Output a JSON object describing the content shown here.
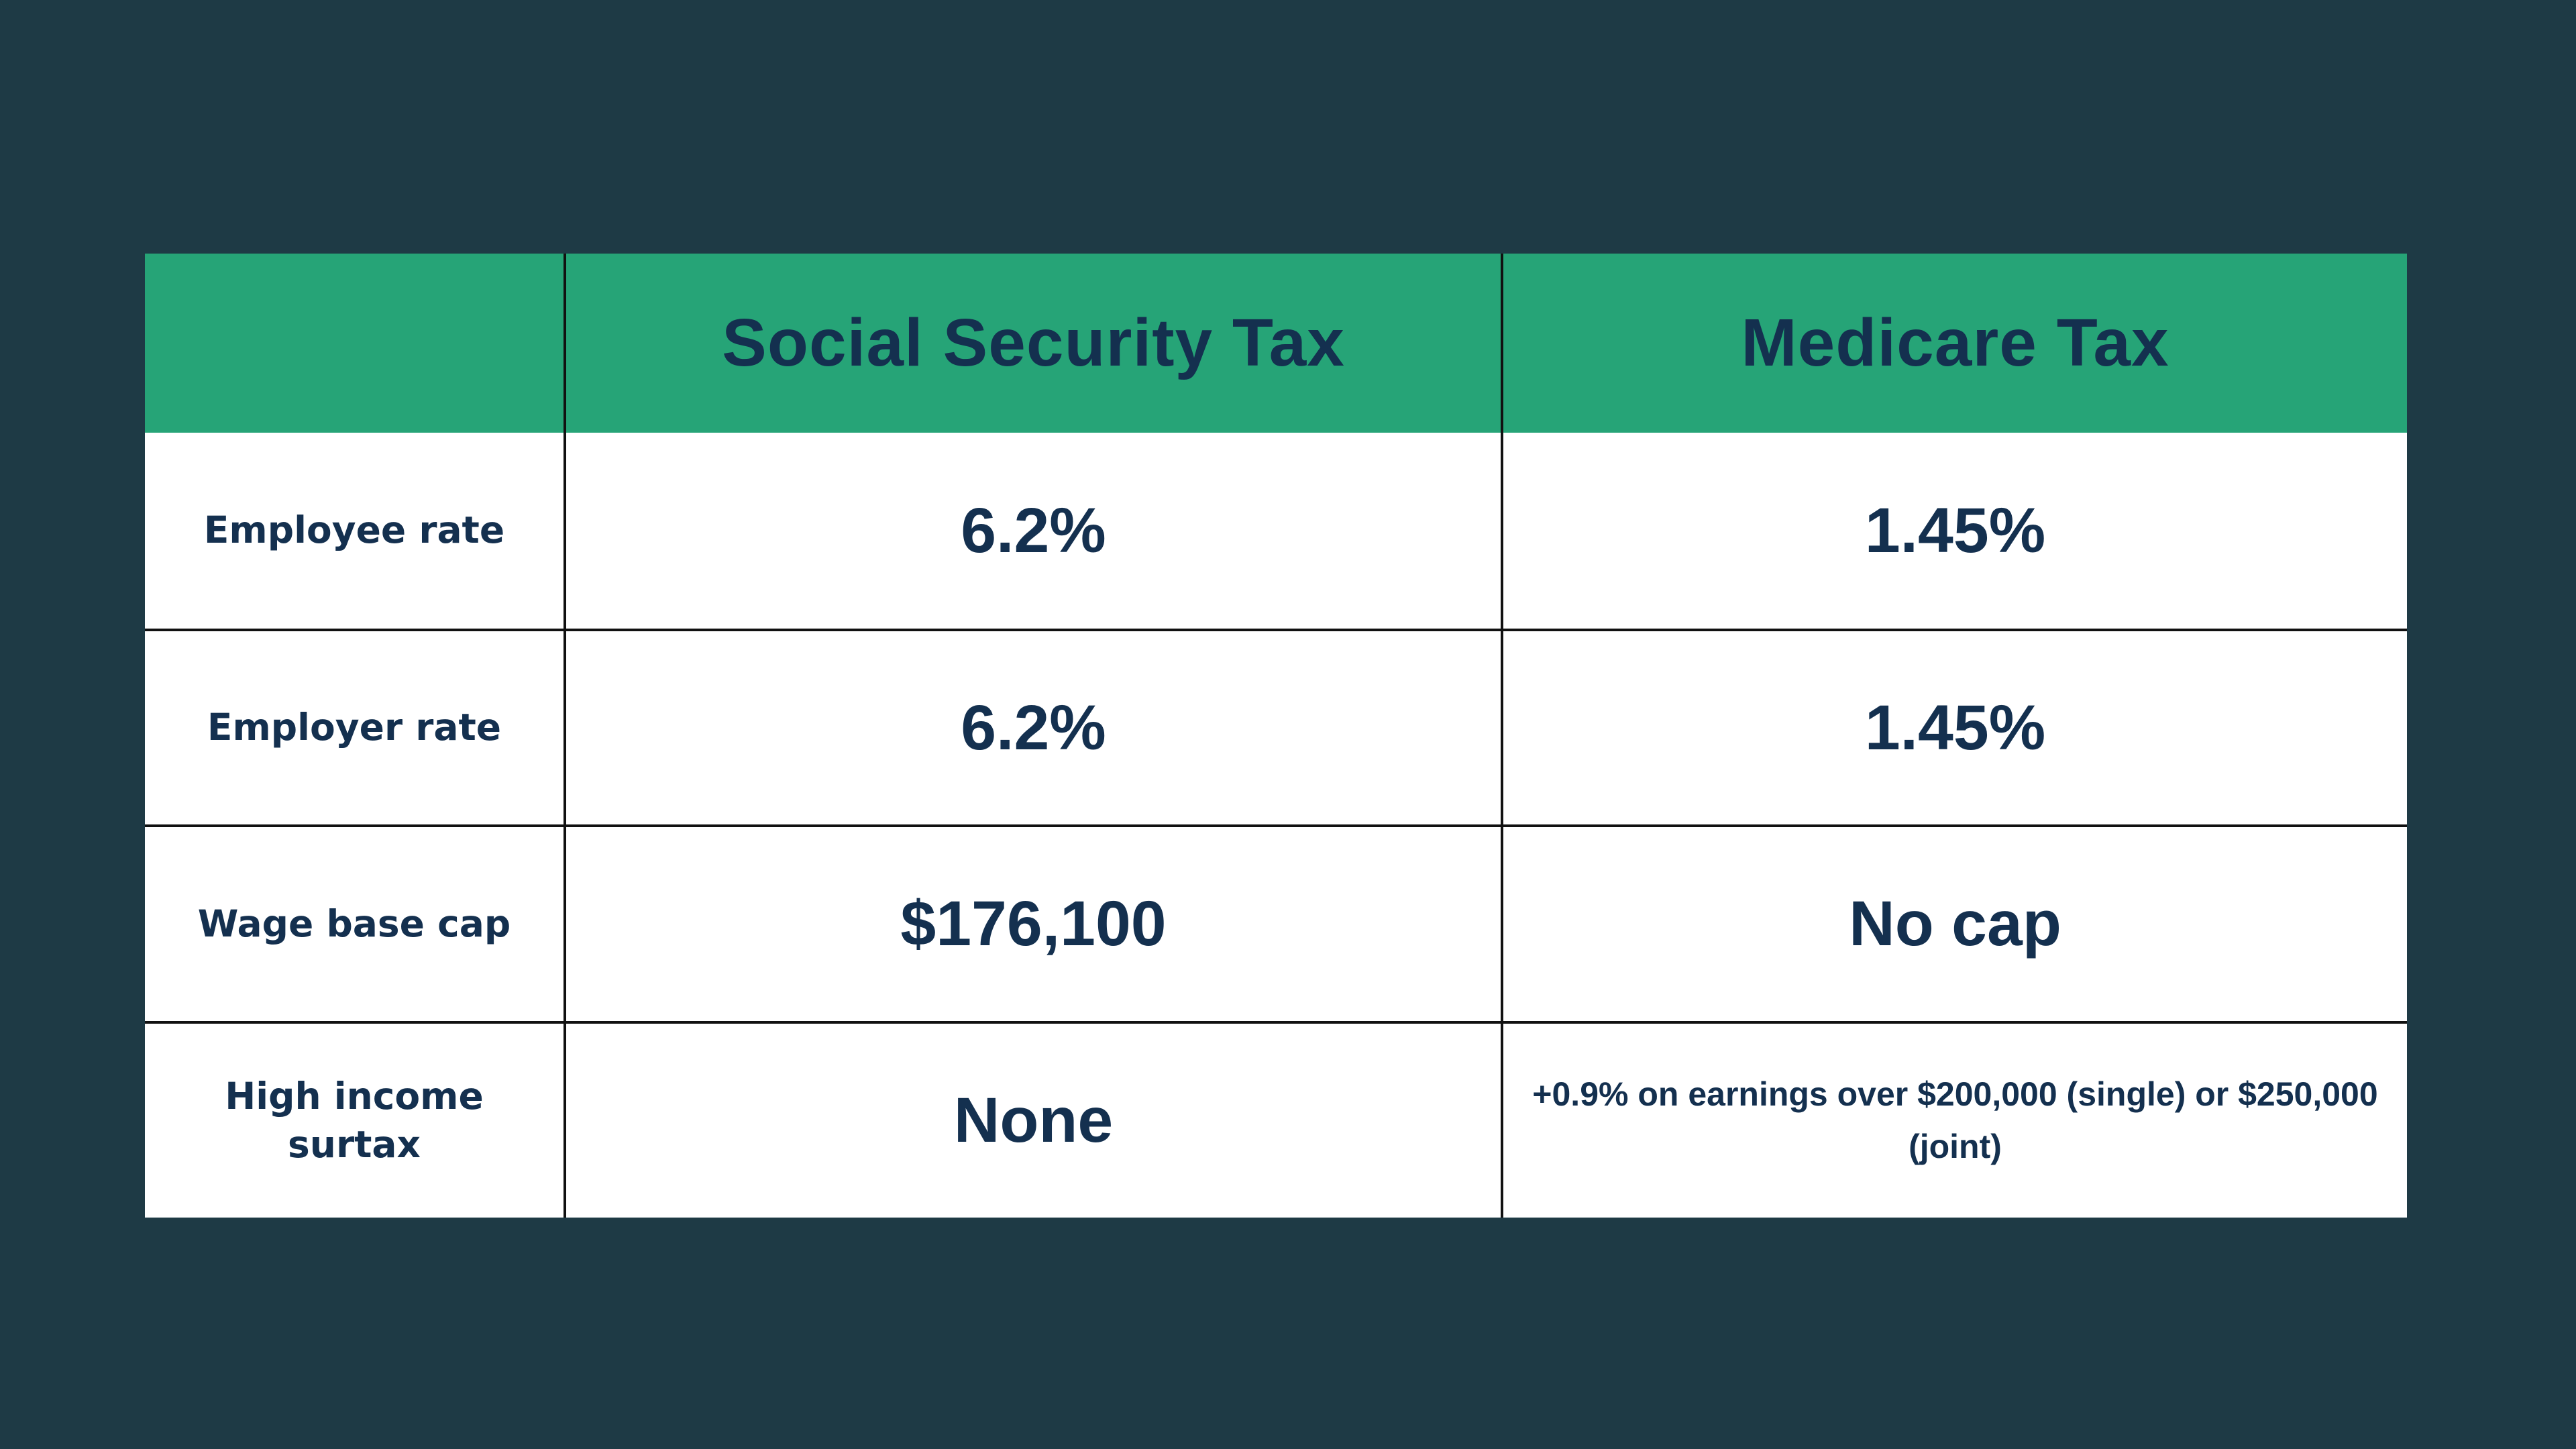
{
  "colors": {
    "background": "#1e3a45",
    "header_green": "#26a477",
    "text_navy": "#14304f",
    "cell_white": "#ffffff",
    "grid_line": "#111111"
  },
  "chart_data": {
    "type": "table",
    "title": "",
    "columns": [
      "",
      "Social Security Tax",
      "Medicare Tax"
    ],
    "rows": [
      [
        "Employee rate",
        "6.2%",
        "1.45%"
      ],
      [
        "Employer rate",
        "6.2%",
        "1.45%"
      ],
      [
        "Wage base cap",
        "$176,100",
        "No cap"
      ],
      [
        "High income surtax",
        "None",
        "+0.9% on earnings over $200,000 (single) or $250,000 (joint)"
      ]
    ]
  }
}
